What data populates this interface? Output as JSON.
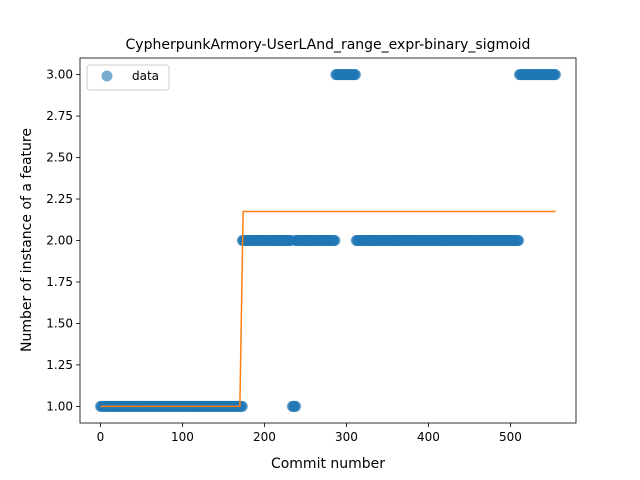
{
  "chart_data": {
    "type": "scatter",
    "title": "CypherpunkArmory-UserLAnd_range_expr-binary_sigmoid",
    "xlabel": "Commit number",
    "ylabel": "Number of instance of a feature",
    "xlim": [
      -25,
      580
    ],
    "ylim": [
      0.9,
      3.1
    ],
    "xticks": [
      0,
      100,
      200,
      300,
      400,
      500
    ],
    "xtick_labels": [
      "0",
      "100",
      "200",
      "300",
      "400",
      "500"
    ],
    "yticks": [
      1.0,
      1.25,
      1.5,
      1.75,
      2.0,
      2.25,
      2.5,
      2.75,
      3.0
    ],
    "ytick_labels": [
      "1.00",
      "1.25",
      "1.50",
      "1.75",
      "2.00",
      "2.25",
      "2.50",
      "2.75",
      "3.00"
    ],
    "legend": {
      "entries": [
        "data"
      ],
      "location": "upper-left"
    },
    "colors": {
      "data": "#1f77b4",
      "fit": "#ff7f0e"
    },
    "series": [
      {
        "name": "data",
        "kind": "scatter",
        "segments": [
          {
            "x_start": 0,
            "x_end": 173,
            "y": 1.0
          },
          {
            "x_start": 173,
            "x_end": 232,
            "y": 2.0
          },
          {
            "x_start": 234,
            "x_end": 238,
            "y": 1.0
          },
          {
            "x_start": 238,
            "x_end": 286,
            "y": 2.0
          },
          {
            "x_start": 287,
            "x_end": 311,
            "y": 3.0
          },
          {
            "x_start": 312,
            "x_end": 510,
            "y": 2.0
          },
          {
            "x_start": 511,
            "x_end": 555,
            "y": 3.0
          }
        ]
      },
      {
        "name": "fit",
        "kind": "line",
        "x": [
          0,
          170,
          172,
          174,
          555
        ],
        "y": [
          1.0,
          1.0,
          1.6,
          2.175,
          2.175
        ]
      }
    ]
  }
}
